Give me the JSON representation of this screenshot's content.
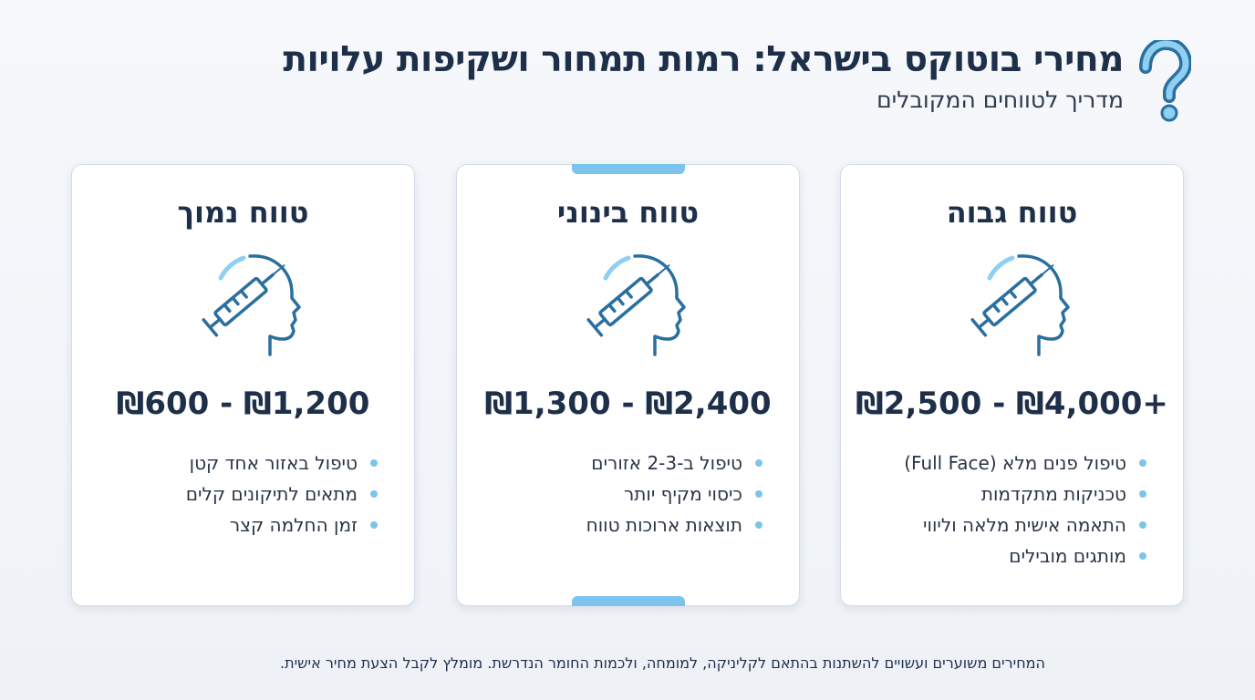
{
  "header": {
    "title": "מחירי בוטוקס בישראל: רמות תמחור ושקיפות עלויות",
    "subtitle": "מדריך לטווחים המקובלים",
    "icon": "question-mark-icon"
  },
  "colors": {
    "primary": "#1e2f4a",
    "accent": "#7cc4ee",
    "icon_stroke": "#2b6f9e"
  },
  "cards": [
    {
      "title": "טווח גבוה",
      "price": "₪2,500 - ₪4,000+",
      "icon": "head-syringe-icon",
      "features": [
        "טיפול פנים מלא (Full Face)",
        "טכניקות מתקדמות",
        "התאמה אישית מלאה וליווי",
        "מותגים מובילים"
      ]
    },
    {
      "title": "טווח בינוני",
      "price": "₪1,300 - ₪2,400",
      "icon": "head-syringe-icon",
      "features": [
        "טיפול ב-2-3 אזורים",
        "כיסוי מקיף יותר",
        "תוצאות ארוכות טווח"
      ]
    },
    {
      "title": "טווח נמוך",
      "price": "₪600 - ₪1,200",
      "icon": "head-syringe-icon",
      "features": [
        "טיפול באזור אחד קטן",
        "מתאים לתיקונים קלים",
        "זמן החלמה קצר"
      ]
    }
  ],
  "footer": {
    "note": "המחירים משוערים ועשויים להשתנות בהתאם לקליניקה, למומחה, ולכמות החומר הנדרשת. מומלץ לקבל הצעת מחיר אישית."
  }
}
